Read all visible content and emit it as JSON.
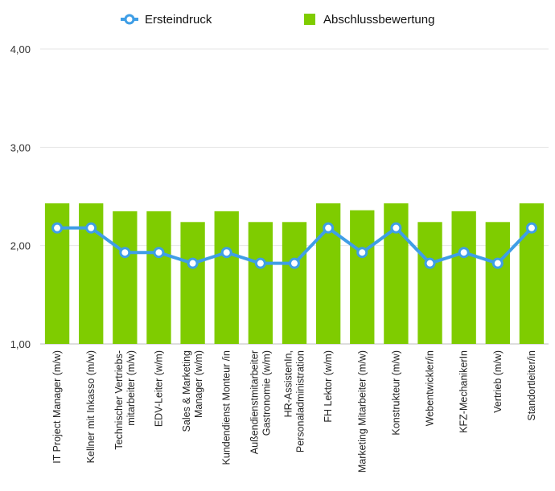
{
  "chart_data": {
    "type": "bar",
    "categories": [
      [
        "IT Project Manager (m/w)"
      ],
      [
        "Kellner mit Inkasso (m/w)"
      ],
      [
        "Technischer Vertriebs-",
        "mitarbeiter (m/w)"
      ],
      [
        "EDV-Leiter (w/m)"
      ],
      [
        "Sales & Marketing",
        "Manager (w/m)"
      ],
      [
        "Kundendienst Monteur /in"
      ],
      [
        "Außendienstmitarbeiter",
        "Gastronomie (w/m)"
      ],
      [
        "HR-AssistenIn,",
        "Personaladministration"
      ],
      [
        "FH Lektor (w/m)"
      ],
      [
        "Marketing Mitarbeiter (m/w)"
      ],
      [
        "Konstrukteur (m/w)"
      ],
      [
        "Webentwickler/in"
      ],
      [
        "KFZ-MechanikerIn"
      ],
      [
        "Vertrieb (m/w)"
      ],
      [
        "Standortleiter/in"
      ]
    ],
    "series": [
      {
        "name": "Abschlussbewertung",
        "type": "bar",
        "color": "#7fcc00",
        "values": [
          2.43,
          2.43,
          2.35,
          2.35,
          2.24,
          2.35,
          2.24,
          2.24,
          2.43,
          2.36,
          2.43,
          2.24,
          2.35,
          2.24,
          2.43
        ]
      },
      {
        "name": "Ersteindruck",
        "type": "line",
        "color": "#3f9ee6",
        "values": [
          2.18,
          2.18,
          1.93,
          1.93,
          1.82,
          1.93,
          1.82,
          1.82,
          2.18,
          1.93,
          2.18,
          1.82,
          1.93,
          1.82,
          2.18
        ]
      }
    ],
    "yticks": [
      "1,00",
      "2,00",
      "3,00",
      "4,00"
    ],
    "ylim": [
      1,
      4
    ],
    "grid": true,
    "legend": "top-center"
  }
}
